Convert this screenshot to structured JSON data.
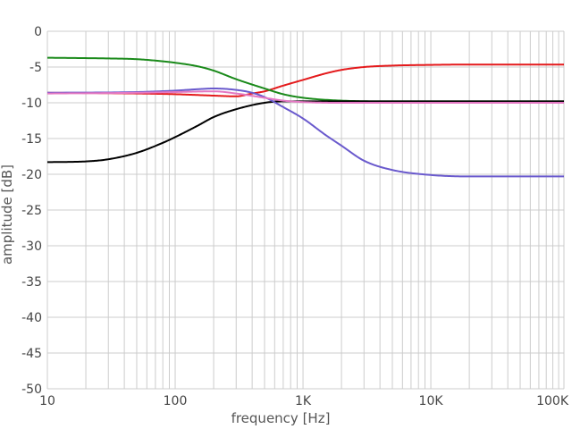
{
  "chart_data": {
    "type": "line",
    "title": "",
    "xlabel": "frequency [Hz]",
    "ylabel": "amplitude [dB]",
    "x_scale": "log",
    "xlim": [
      10,
      110000
    ],
    "ylim": [
      -50,
      0
    ],
    "grid": true,
    "legend": "none",
    "x_ticks": [
      {
        "value": 10,
        "label": "10"
      },
      {
        "value": 100,
        "label": "100"
      },
      {
        "value": 1000,
        "label": "1K"
      },
      {
        "value": 10000,
        "label": "10K"
      },
      {
        "value": 100000,
        "label": "100K"
      }
    ],
    "y_ticks": [
      {
        "value": 0,
        "label": "0"
      },
      {
        "value": -5,
        "label": "-5"
      },
      {
        "value": -10,
        "label": "-10"
      },
      {
        "value": -15,
        "label": "-15"
      },
      {
        "value": -20,
        "label": "-20"
      },
      {
        "value": -25,
        "label": "-25"
      },
      {
        "value": -30,
        "label": "-30"
      },
      {
        "value": -35,
        "label": "-35"
      },
      {
        "value": -40,
        "label": "-40"
      },
      {
        "value": -45,
        "label": "-45"
      },
      {
        "value": -50,
        "label": "-50"
      }
    ],
    "series": [
      {
        "color": "#e41a1c",
        "points": [
          [
            10,
            -8.6
          ],
          [
            50,
            -8.7
          ],
          [
            100,
            -8.8
          ],
          [
            200,
            -9.0
          ],
          [
            300,
            -9.1
          ],
          [
            400,
            -8.7
          ],
          [
            500,
            -8.4
          ],
          [
            700,
            -7.6
          ],
          [
            1000,
            -6.8
          ],
          [
            1500,
            -5.9
          ],
          [
            2000,
            -5.4
          ],
          [
            3000,
            -5.0
          ],
          [
            5000,
            -4.8
          ],
          [
            10000,
            -4.7
          ],
          [
            20000,
            -4.65
          ],
          [
            110000,
            -4.65
          ]
        ]
      },
      {
        "color": "#1a8a1a",
        "points": [
          [
            10,
            -3.7
          ],
          [
            30,
            -3.8
          ],
          [
            50,
            -3.9
          ],
          [
            80,
            -4.2
          ],
          [
            100,
            -4.4
          ],
          [
            150,
            -4.9
          ],
          [
            200,
            -5.5
          ],
          [
            300,
            -6.7
          ],
          [
            500,
            -8.0
          ],
          [
            700,
            -8.8
          ],
          [
            1000,
            -9.3
          ],
          [
            2000,
            -9.7
          ],
          [
            5000,
            -9.8
          ],
          [
            10000,
            -9.8
          ],
          [
            110000,
            -9.8
          ]
        ]
      },
      {
        "color": "#000000",
        "points": [
          [
            10,
            -18.3
          ],
          [
            20,
            -18.2
          ],
          [
            30,
            -17.9
          ],
          [
            50,
            -17.0
          ],
          [
            80,
            -15.6
          ],
          [
            100,
            -14.8
          ],
          [
            150,
            -13.2
          ],
          [
            200,
            -12.0
          ],
          [
            300,
            -10.9
          ],
          [
            500,
            -10.0
          ],
          [
            700,
            -9.8
          ],
          [
            1000,
            -9.8
          ],
          [
            2000,
            -9.8
          ],
          [
            10000,
            -9.8
          ],
          [
            110000,
            -9.8
          ]
        ]
      },
      {
        "color": "#6a5acd",
        "points": [
          [
            10,
            -8.6
          ],
          [
            50,
            -8.5
          ],
          [
            100,
            -8.3
          ],
          [
            150,
            -8.1
          ],
          [
            200,
            -8.0
          ],
          [
            300,
            -8.2
          ],
          [
            400,
            -8.6
          ],
          [
            500,
            -9.2
          ],
          [
            700,
            -10.6
          ],
          [
            1000,
            -12.2
          ],
          [
            1500,
            -14.5
          ],
          [
            2000,
            -16.0
          ],
          [
            3000,
            -18.1
          ],
          [
            5000,
            -19.4
          ],
          [
            10000,
            -20.1
          ],
          [
            20000,
            -20.3
          ],
          [
            110000,
            -20.3
          ]
        ]
      },
      {
        "color": "#e377c2",
        "points": [
          [
            10,
            -8.7
          ],
          [
            50,
            -8.6
          ],
          [
            100,
            -8.5
          ],
          [
            200,
            -8.4
          ],
          [
            300,
            -8.7
          ],
          [
            500,
            -9.3
          ],
          [
            700,
            -9.7
          ],
          [
            1000,
            -9.9
          ],
          [
            2000,
            -10.0
          ],
          [
            10000,
            -10.0
          ],
          [
            110000,
            -10.0
          ]
        ]
      }
    ]
  }
}
